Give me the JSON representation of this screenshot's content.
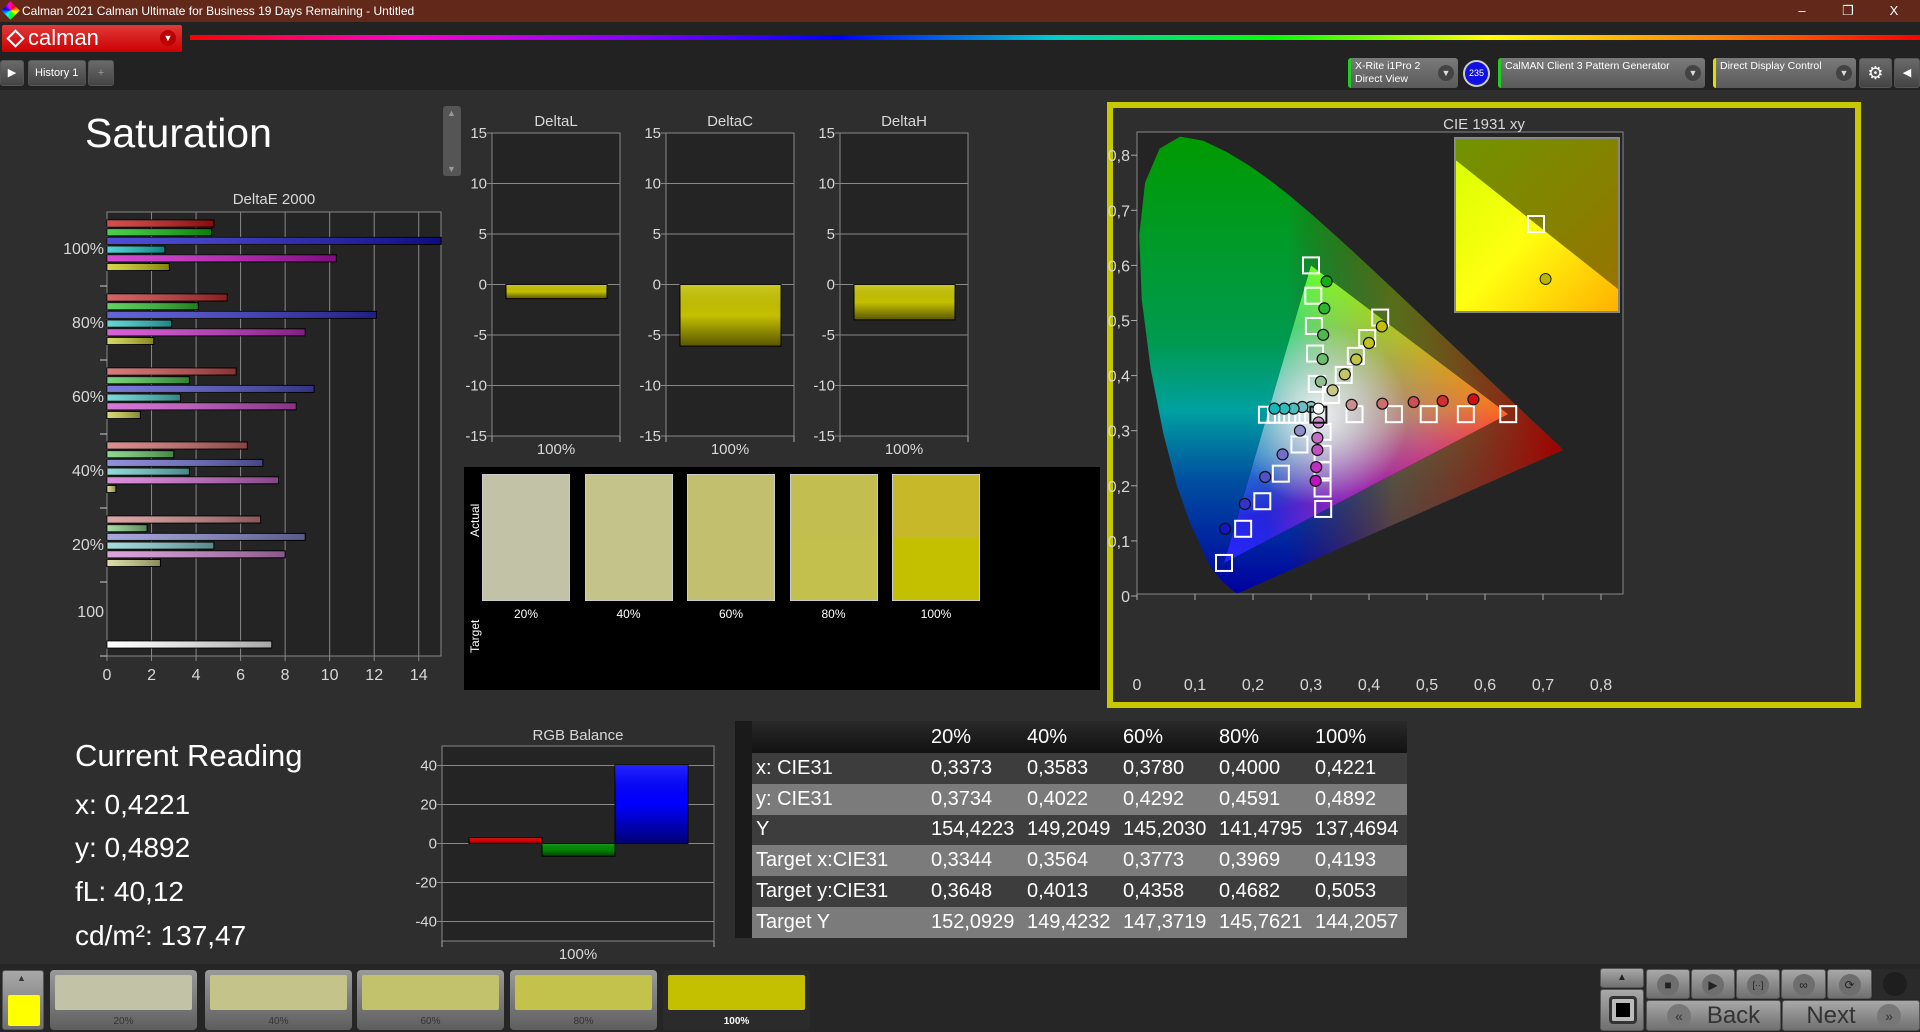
{
  "window": {
    "title": "Calman 2021 Calman Ultimate for Business 19 Days Remaining  - Untitled",
    "minimize": "–",
    "restore": "❐",
    "close": "X"
  },
  "logo": {
    "text": "calman"
  },
  "tabs": [
    {
      "label": "History 1"
    }
  ],
  "add_tab": "+",
  "devices": {
    "meter": {
      "line1": "X-Rite i1Pro 2",
      "line2": "Direct View",
      "accent": "#22cc22"
    },
    "meter_badge": "235",
    "pattern": {
      "label": "CalMAN Client 3 Pattern Generator",
      "accent": "#22cc22"
    },
    "display": {
      "label": "Direct Display Control",
      "accent": "#dddd00"
    }
  },
  "page": {
    "title": "Saturation"
  },
  "current_reading": {
    "title": "Current Reading",
    "x": "x: 0,4221",
    "y": "y: 0,4892",
    "fl": "fL: 40,12",
    "cdm2": "cd/m²: 137,47"
  },
  "swatch_panel": {
    "actual_label": "Actual",
    "target_label": "Target",
    "items": [
      {
        "label": "20%",
        "actual": "#c2c2a6",
        "target": "#c2c2a6"
      },
      {
        "label": "40%",
        "actual": "#c4c48a",
        "target": "#c4c48a"
      },
      {
        "label": "60%",
        "actual": "#c2c06e",
        "target": "#c2c06e"
      },
      {
        "label": "80%",
        "actual": "#c3be50",
        "target": "#c3c04e"
      },
      {
        "label": "100%",
        "actual": "#c6b828",
        "target": "#c4c000"
      }
    ]
  },
  "table": {
    "headers": [
      "20%",
      "40%",
      "60%",
      "80%",
      "100%"
    ],
    "rows": [
      {
        "label": "x: CIE31",
        "values": [
          "0,3373",
          "0,3583",
          "0,3780",
          "0,4000",
          "0,4221"
        ]
      },
      {
        "label": "y: CIE31",
        "values": [
          "0,3734",
          "0,4022",
          "0,4292",
          "0,4591",
          "0,4892"
        ]
      },
      {
        "label": "Y",
        "values": [
          "154,4223",
          "149,2049",
          "145,2030",
          "141,4795",
          "137,4694"
        ]
      },
      {
        "label": "Target x:CIE31",
        "values": [
          "0,3344",
          "0,3564",
          "0,3773",
          "0,3969",
          "0,4193"
        ]
      },
      {
        "label": "Target y:CIE31",
        "values": [
          "0,3648",
          "0,4013",
          "0,4358",
          "0,4682",
          "0,5053"
        ]
      },
      {
        "label": "Target Y",
        "values": [
          "152,0929",
          "149,4232",
          "147,3719",
          "145,7621",
          "144,2057"
        ]
      }
    ]
  },
  "bottom": {
    "current_color": "#ffff00",
    "patches": [
      {
        "label": "20%",
        "color": "#c2c2a6"
      },
      {
        "label": "40%",
        "color": "#c3c38a"
      },
      {
        "label": "60%",
        "color": "#c2c26c"
      },
      {
        "label": "80%",
        "color": "#c2c24c"
      },
      {
        "label": "100%",
        "color": "#c4c000",
        "selected": true
      }
    ],
    "controls": {
      "stop": "■",
      "play": "▶",
      "range": "[··]",
      "loop": "∞",
      "refresh": "⟳",
      "back": "Back",
      "next": "Next",
      "back_icon": "«",
      "next_icon": "»",
      "up": "▲"
    }
  },
  "chart_data": [
    {
      "id": "deltae",
      "type": "bar",
      "orientation": "horizontal",
      "title": "DeltaE 2000",
      "xlim": [
        0,
        15
      ],
      "xticks": [
        0,
        2,
        4,
        6,
        8,
        10,
        12,
        14
      ],
      "grid": true,
      "series_colors": [
        "#d01010",
        "#10c010",
        "#1414c8",
        "#10c8c8",
        "#c810c8",
        "#c8c810"
      ],
      "groups": [
        {
          "label": "100%",
          "level": 100,
          "values": [
            4.8,
            4.7,
            15.0,
            2.6,
            10.3,
            2.8
          ]
        },
        {
          "label": "80%",
          "level": 80,
          "values": [
            5.4,
            4.1,
            12.1,
            2.9,
            8.9,
            2.1
          ]
        },
        {
          "label": "60%",
          "level": 60,
          "values": [
            5.8,
            3.7,
            9.3,
            3.3,
            8.5,
            1.5
          ]
        },
        {
          "label": "40%",
          "level": 40,
          "values": [
            6.3,
            3.0,
            7.0,
            3.7,
            7.7,
            0.4
          ]
        },
        {
          "label": "20%",
          "level": 20,
          "values": [
            6.9,
            1.8,
            8.9,
            4.8,
            8.0,
            2.4
          ]
        },
        {
          "label": "100",
          "level": 0,
          "values": [
            7.4
          ],
          "color": "#ffffff"
        }
      ]
    },
    {
      "id": "deltal",
      "type": "bar",
      "title": "DeltaL",
      "categories": [
        "100%"
      ],
      "values": [
        -1.4
      ],
      "ylim": [
        -15,
        15
      ],
      "yticks": [
        15,
        10,
        5,
        0,
        -5,
        -10,
        -15
      ],
      "color": "#c4c000"
    },
    {
      "id": "deltac",
      "type": "bar",
      "title": "DeltaC",
      "categories": [
        "100%"
      ],
      "values": [
        -6.1
      ],
      "ylim": [
        -15,
        15
      ],
      "yticks": [
        15,
        10,
        5,
        0,
        -5,
        -10,
        -15
      ],
      "color": "#c4c000"
    },
    {
      "id": "deltah",
      "type": "bar",
      "title": "DeltaH",
      "categories": [
        "100%"
      ],
      "values": [
        -3.5
      ],
      "ylim": [
        -15,
        15
      ],
      "yticks": [
        15,
        10,
        5,
        0,
        -5,
        -10,
        -15
      ],
      "color": "#c4c000"
    },
    {
      "id": "rgb",
      "type": "bar",
      "title": "RGB Balance",
      "categories": [
        "100%"
      ],
      "series": [
        {
          "values": [
            3
          ],
          "color": "#e00000"
        },
        {
          "values": [
            -6.5
          ],
          "color": "#008800"
        },
        {
          "values": [
            40.5
          ],
          "color": "#0000ff"
        }
      ],
      "ylim": [
        -50,
        50
      ],
      "yticks": [
        40,
        20,
        0,
        -20,
        -40
      ]
    },
    {
      "id": "cie",
      "type": "scatter",
      "title": "CIE 1931 xy",
      "xlim": [
        0,
        0.838
      ],
      "ylim": [
        0,
        0.842
      ],
      "xticks": [
        {
          "v": 0,
          "t": "0"
        },
        {
          "v": 0.1,
          "t": "0,1"
        },
        {
          "v": 0.2,
          "t": "0,2"
        },
        {
          "v": 0.3,
          "t": "0,3"
        },
        {
          "v": 0.4,
          "t": "0,4"
        },
        {
          "v": 0.5,
          "t": "0,5"
        },
        {
          "v": 0.6,
          "t": "0,6"
        },
        {
          "v": 0.7,
          "t": "0,7"
        },
        {
          "v": 0.8,
          "t": "0,8"
        }
      ],
      "yticks": [
        {
          "v": 0,
          "t": "0"
        },
        {
          "v": 0.1,
          "t": "0,1"
        },
        {
          "v": 0.2,
          "t": "0,2"
        },
        {
          "v": 0.3,
          "t": "0,3"
        },
        {
          "v": 0.4,
          "t": "0,4"
        },
        {
          "v": 0.5,
          "t": "0,5"
        },
        {
          "v": 0.6,
          "t": "0,6"
        },
        {
          "v": 0.7,
          "t": "0,7"
        },
        {
          "v": 0.8,
          "t": "0,8"
        }
      ],
      "gamut": [
        [
          0.64,
          0.33
        ],
        [
          0.3,
          0.6
        ],
        [
          0.15,
          0.06
        ]
      ],
      "white": {
        "target": [
          0.3127,
          0.329
        ],
        "measured": [
          0.313,
          0.34
        ]
      },
      "series": [
        {
          "color": "#d01010",
          "targets": [
            [
              0.375,
              0.33
            ],
            [
              0.443,
              0.33
            ],
            [
              0.503,
              0.33
            ],
            [
              0.567,
              0.33
            ],
            [
              0.64,
              0.33
            ]
          ],
          "measured": [
            [
              0.37,
              0.347
            ],
            [
              0.423,
              0.349
            ],
            [
              0.477,
              0.352
            ],
            [
              0.527,
              0.354
            ],
            [
              0.58,
              0.357
            ]
          ]
        },
        {
          "color": "#10b010",
          "targets": [
            [
              0.31,
              0.385
            ],
            [
              0.307,
              0.44
            ],
            [
              0.305,
              0.49
            ],
            [
              0.304,
              0.545
            ],
            [
              0.3,
              0.6
            ]
          ],
          "measured": [
            [
              0.317,
              0.389
            ],
            [
              0.32,
              0.43
            ],
            [
              0.321,
              0.474
            ],
            [
              0.323,
              0.522
            ],
            [
              0.327,
              0.571
            ]
          ]
        },
        {
          "color": "#1414c8",
          "targets": [
            [
              0.28,
              0.275
            ],
            [
              0.248,
              0.222
            ],
            [
              0.216,
              0.172
            ],
            [
              0.183,
              0.122
            ],
            [
              0.15,
              0.06
            ]
          ],
          "measured": [
            [
              0.281,
              0.3
            ],
            [
              0.251,
              0.257
            ],
            [
              0.221,
              0.216
            ],
            [
              0.186,
              0.167
            ],
            [
              0.152,
              0.122
            ]
          ]
        },
        {
          "color": "#10b8b8",
          "targets": [
            [
              0.294,
              0.329
            ],
            [
              0.276,
              0.329
            ],
            [
              0.259,
              0.329
            ],
            [
              0.24,
              0.329
            ],
            [
              0.224,
              0.329
            ]
          ],
          "measured": [
            [
              0.3,
              0.343
            ],
            [
              0.285,
              0.343
            ],
            [
              0.27,
              0.34
            ],
            [
              0.254,
              0.34
            ],
            [
              0.237,
              0.34
            ]
          ]
        },
        {
          "color": "#c010c0",
          "targets": [
            [
              0.32,
              0.298
            ],
            [
              0.32,
              0.258
            ],
            [
              0.32,
              0.228
            ],
            [
              0.32,
              0.195
            ],
            [
              0.321,
              0.158
            ]
          ],
          "measured": [
            [
              0.313,
              0.315
            ],
            [
              0.311,
              0.287
            ],
            [
              0.311,
              0.265
            ],
            [
              0.309,
              0.234
            ],
            [
              0.308,
              0.209
            ]
          ]
        },
        {
          "color": "#c4c000",
          "targets": [
            [
              0.3344,
              0.3648
            ],
            [
              0.3564,
              0.4013
            ],
            [
              0.3773,
              0.4358
            ],
            [
              0.3969,
              0.4682
            ],
            [
              0.4193,
              0.5053
            ]
          ],
          "measured": [
            [
              0.3373,
              0.3734
            ],
            [
              0.3583,
              0.4022
            ],
            [
              0.378,
              0.4292
            ],
            [
              0.4,
              0.4591
            ],
            [
              0.4221,
              0.4892
            ]
          ]
        }
      ],
      "inset": {
        "focus_series": "yellow",
        "focus_level": "100%"
      }
    }
  ]
}
